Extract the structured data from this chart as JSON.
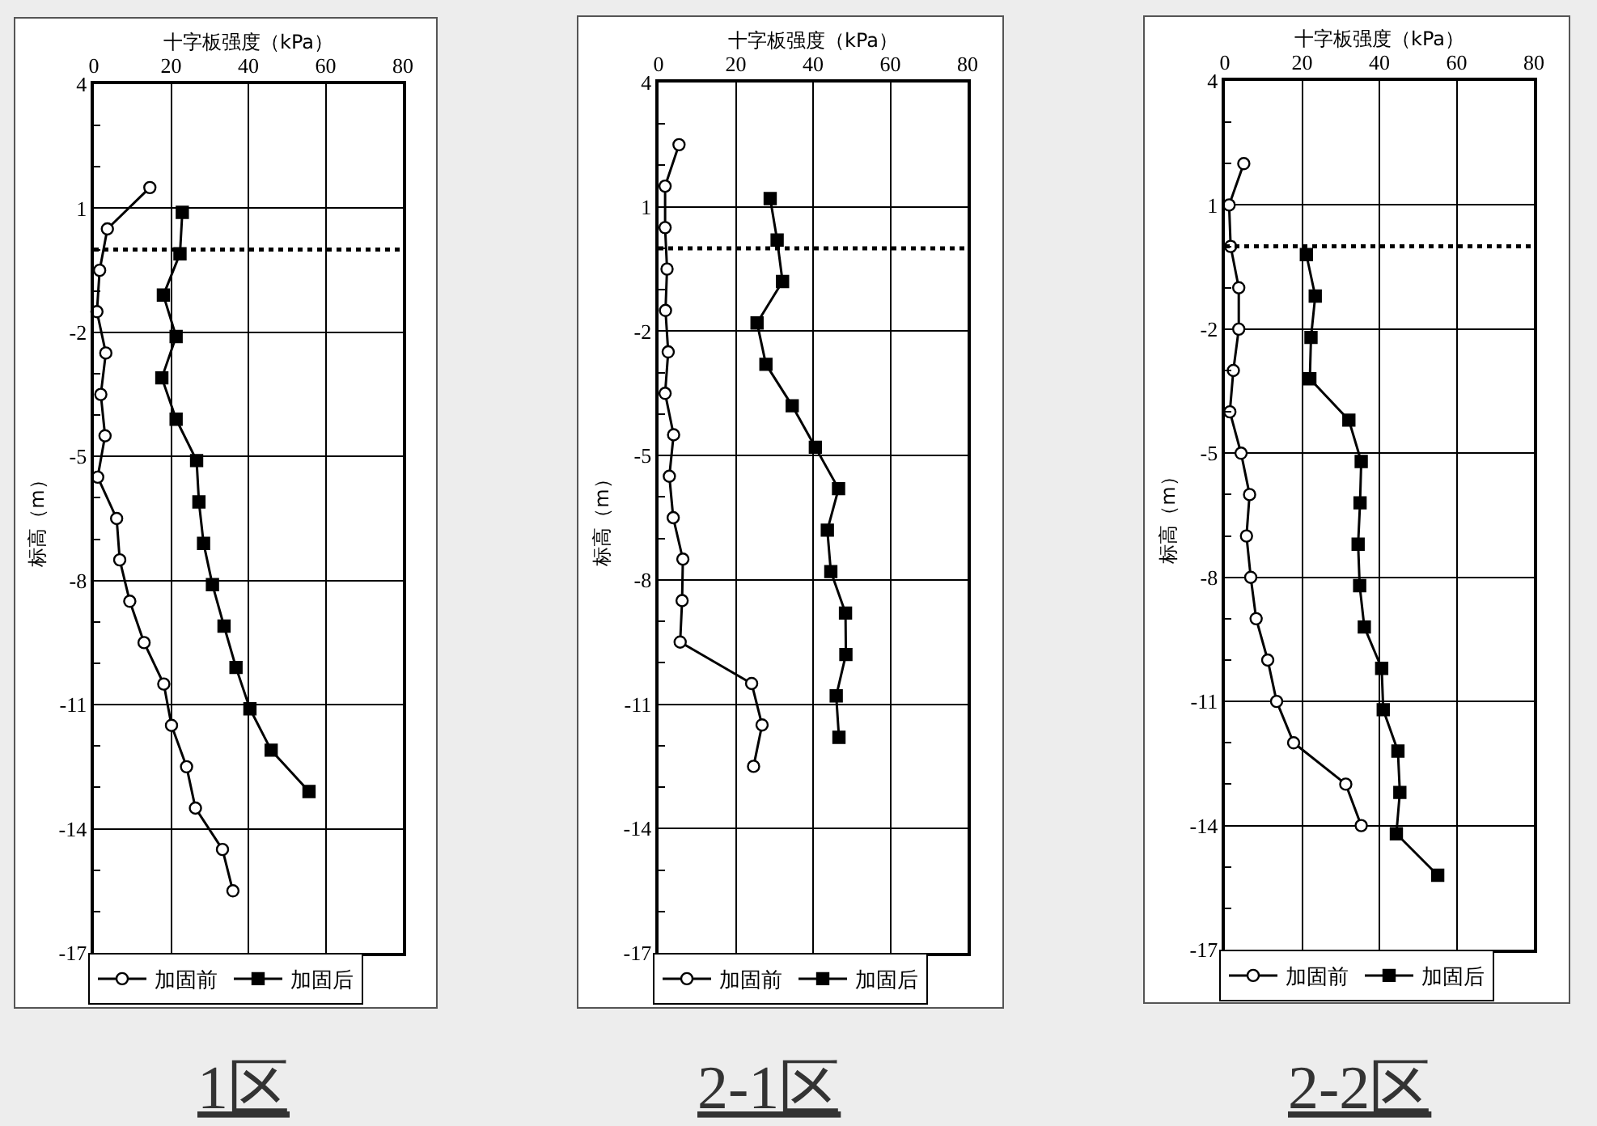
{
  "chart_data": [
    {
      "type": "line",
      "xlabel": "十字板强度（kPa）",
      "ylabel": "标高（m）",
      "xlim": [
        0,
        80
      ],
      "xticks": [
        0,
        20,
        40,
        60,
        80
      ],
      "ylim": [
        -17,
        4
      ],
      "yticks": [
        4,
        {
          "value": 3,
          "label": null
        },
        {
          "value": 2,
          "label": null
        },
        1,
        {
          "value": 0,
          "label": null
        },
        {
          "value": -1,
          "label": null
        },
        -2,
        {
          "value": -3,
          "label": null
        },
        {
          "value": -4,
          "label": null
        },
        -5,
        {
          "value": -6,
          "label": null
        },
        {
          "value": -7,
          "label": null
        },
        -8,
        {
          "value": -9,
          "label": null
        },
        {
          "value": -10,
          "label": null
        },
        -11,
        {
          "value": -12,
          "label": null
        },
        {
          "value": -13,
          "label": null
        },
        -14,
        {
          "value": -15,
          "label": null
        },
        {
          "value": -16,
          "label": null
        },
        -17
      ],
      "grid": true,
      "legend": "bottom",
      "ref_lines": [
        {
          "axis": "y",
          "value": 0,
          "line_style": "dotted",
          "color": "#000000"
        }
      ],
      "annotations": [
        "1区"
      ],
      "series": [
        {
          "name": "加固前",
          "color": "#000000",
          "marker": "circle",
          "x": [
            14.5,
            3.5,
            1.5,
            0.8,
            3.1,
            1.8,
            2.9,
            1.0,
            5.9,
            6.7,
            9.3,
            13.0,
            18.1,
            20.1,
            24.0,
            26.3,
            33.3,
            36.0
          ],
          "values": [
            1.5,
            0.5,
            -0.5,
            -1.5,
            -2.5,
            -3.5,
            -4.5,
            -5.5,
            -6.5,
            -7.5,
            -8.5,
            -9.5,
            -10.5,
            -11.5,
            -12.5,
            -13.5,
            -14.5,
            -15.5
          ]
        },
        {
          "name": "加固后",
          "color": "#000000",
          "marker": "square",
          "x": [
            22.9,
            22.3,
            18.0,
            21.3,
            17.6,
            21.3,
            26.6,
            27.2,
            28.4,
            30.7,
            33.7,
            36.8,
            40.4,
            45.9,
            55.7
          ],
          "values": [
            0.9,
            -0.1,
            -1.1,
            -2.1,
            -3.1,
            -4.1,
            -5.1,
            -6.1,
            -7.1,
            -8.1,
            -9.1,
            -10.1,
            -11.1,
            -12.1,
            -13.1
          ]
        }
      ]
    },
    {
      "type": "line",
      "xlabel": "十字板强度（kPa）",
      "ylabel": "标高（m）",
      "xlim": [
        0,
        80
      ],
      "xticks": [
        0,
        20,
        40,
        60,
        80
      ],
      "ylim": [
        -17,
        4
      ],
      "yticks": [
        4,
        {
          "value": 3,
          "label": null
        },
        {
          "value": 2,
          "label": null
        },
        1,
        {
          "value": 0,
          "label": null
        },
        {
          "value": -1,
          "label": null
        },
        -2,
        {
          "value": -3,
          "label": null
        },
        {
          "value": -4,
          "label": null
        },
        -5,
        {
          "value": -6,
          "label": null
        },
        {
          "value": -7,
          "label": null
        },
        -8,
        {
          "value": -9,
          "label": null
        },
        {
          "value": -10,
          "label": null
        },
        -11,
        {
          "value": -12,
          "label": null
        },
        {
          "value": -13,
          "label": null
        },
        -14,
        {
          "value": -15,
          "label": null
        },
        {
          "value": -16,
          "label": null
        },
        -17
      ],
      "grid": true,
      "legend": "bottom",
      "ref_lines": [
        {
          "axis": "y",
          "value": 0,
          "line_style": "dotted",
          "color": "#000000"
        }
      ],
      "annotations": [
        "2-1区"
      ],
      "series": [
        {
          "name": "加固前",
          "color": "#000000",
          "marker": "circle",
          "x": [
            5.3,
            1.7,
            1.7,
            2.2,
            1.8,
            2.5,
            1.7,
            3.9,
            2.8,
            3.8,
            6.3,
            6.1,
            5.6,
            24.1,
            26.8,
            24.6
          ],
          "values": [
            2.5,
            1.5,
            0.5,
            -0.5,
            -1.5,
            -2.5,
            -3.5,
            -4.5,
            -5.5,
            -6.5,
            -7.5,
            -8.5,
            -9.5,
            -10.5,
            -11.5,
            -12.5
          ]
        },
        {
          "name": "加固后",
          "color": "#000000",
          "marker": "square",
          "x": [
            28.9,
            30.7,
            32.1,
            25.5,
            27.8,
            34.6,
            40.6,
            46.6,
            43.7,
            44.6,
            48.4,
            48.5,
            46.0,
            46.7
          ],
          "values": [
            1.2,
            0.2,
            -0.8,
            -1.8,
            -2.8,
            -3.8,
            -4.8,
            -5.8,
            -6.8,
            -7.8,
            -8.8,
            -9.8,
            -10.8,
            -11.8
          ]
        }
      ]
    },
    {
      "type": "line",
      "xlabel": "十字板强度（kPa）",
      "ylabel": "标高（m）",
      "xlim": [
        0,
        80
      ],
      "xticks": [
        0,
        20,
        40,
        60,
        80
      ],
      "ylim": [
        -17,
        4
      ],
      "yticks": [
        4,
        {
          "value": 3,
          "label": null
        },
        {
          "value": 2,
          "label": null
        },
        1,
        {
          "value": 0,
          "label": null
        },
        {
          "value": -1,
          "label": null
        },
        -2,
        {
          "value": -3,
          "label": null
        },
        {
          "value": -4,
          "label": null
        },
        -5,
        {
          "value": -6,
          "label": null
        },
        {
          "value": -7,
          "label": null
        },
        -8,
        {
          "value": -9,
          "label": null
        },
        {
          "value": -10,
          "label": null
        },
        -11,
        {
          "value": -12,
          "label": null
        },
        {
          "value": -13,
          "label": null
        },
        -14,
        {
          "value": -15,
          "label": null
        },
        {
          "value": -16,
          "label": null
        },
        -17
      ],
      "grid": true,
      "legend": "bottom",
      "ref_lines": [
        {
          "axis": "y",
          "value": 0,
          "line_style": "dotted",
          "color": "#000000"
        }
      ],
      "annotations": [
        "2-2区"
      ],
      "series": [
        {
          "name": "加固前",
          "color": "#000000",
          "marker": "circle",
          "x": [
            4.9,
            1.1,
            1.5,
            3.6,
            3.6,
            2.2,
            1.3,
            4.2,
            6.4,
            5.6,
            6.7,
            8.1,
            11.1,
            13.4,
            17.8,
            31.3,
            35.3
          ],
          "values": [
            2,
            1,
            0,
            -1,
            -2,
            -3,
            -4,
            -5,
            -6,
            -7,
            -8,
            -9,
            -10,
            -11,
            -12,
            -13,
            -14
          ]
        },
        {
          "name": "加固后",
          "color": "#000000",
          "marker": "square",
          "x": [
            21.1,
            23.4,
            22.3,
            22.0,
            32.1,
            35.3,
            35.0,
            34.5,
            34.9,
            36.1,
            40.6,
            41.0,
            44.8,
            45.3,
            44.4,
            55.1
          ],
          "values": [
            -0.2,
            -1.2,
            -2.2,
            -3.2,
            -4.2,
            -5.2,
            -6.2,
            -7.2,
            -8.2,
            -9.2,
            -10.2,
            -11.2,
            -12.2,
            -13.2,
            -14.2,
            -15.2
          ]
        }
      ]
    }
  ]
}
